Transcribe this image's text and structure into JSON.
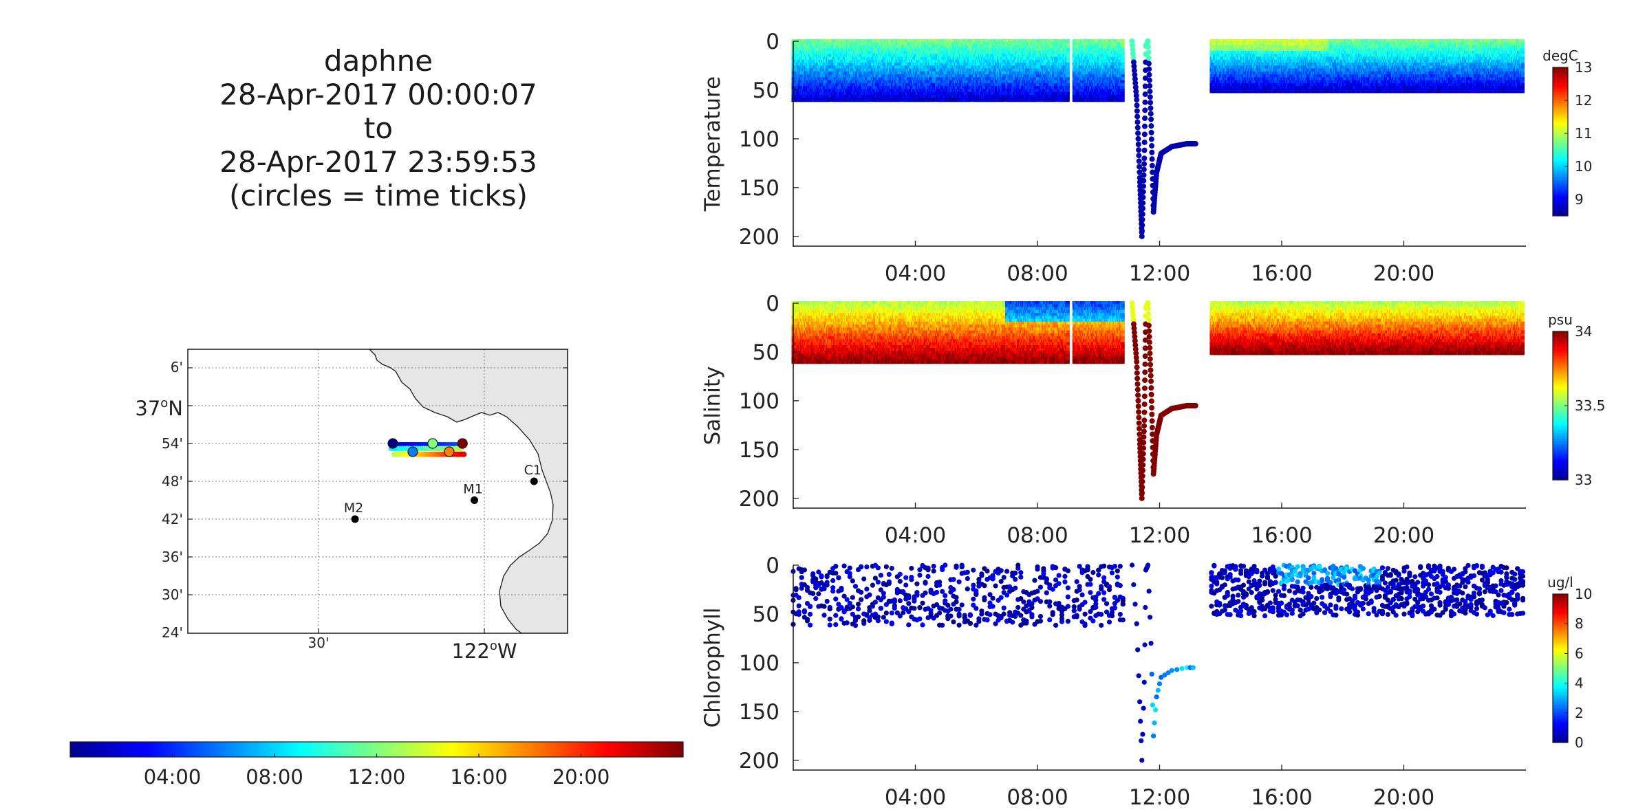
{
  "header": {
    "line1": "daphne",
    "line2": "28-Apr-2017 00:00:07",
    "line3": "to",
    "line4": "28-Apr-2017 23:59:53",
    "line5": "(circles = time ticks)"
  },
  "map": {
    "lat_ticks": [
      "6'",
      "37°N",
      "54'",
      "48'",
      "42'",
      "36'",
      "30'",
      "24'"
    ],
    "lon_ticks": [
      "30'",
      "122°W"
    ],
    "stations": [
      {
        "name": "M2",
        "lon": -122.39,
        "lat": 36.7
      },
      {
        "name": "M1",
        "lon": -122.03,
        "lat": 36.75
      },
      {
        "name": "C1",
        "lon": -121.85,
        "lat": 36.8
      }
    ],
    "track": {
      "lon_start": -122.28,
      "lon_end": -122.07,
      "lat_top": 36.9,
      "lat_bottom": 36.875
    },
    "land_color": "#e6e6e6"
  },
  "time_colorbar": {
    "tick_labels": [
      "04:00",
      "08:00",
      "12:00",
      "16:00",
      "20:00"
    ],
    "range_hours": [
      0,
      24
    ]
  },
  "chart_data": [
    {
      "type": "scatter",
      "ylabel": "Temperature",
      "units": "degC",
      "x_ticks": [
        "04:00",
        "08:00",
        "12:00",
        "16:00",
        "20:00"
      ],
      "y_ticks": [
        "0",
        "50",
        "100",
        "150",
        "200"
      ],
      "ylim": [
        0,
        210
      ],
      "y_reversed": true,
      "xlim_hours": [
        0,
        24
      ],
      "colorbar": {
        "min": 8.5,
        "max": 13,
        "ticks": [
          "13",
          "12",
          "11",
          "10",
          "9"
        ],
        "tick_values": [
          13,
          12,
          11,
          10,
          9
        ]
      },
      "surface_value": 10.6,
      "deep_value": 9.1,
      "dive_value": 8.8
    },
    {
      "type": "scatter",
      "ylabel": "Salinity",
      "units": "psu",
      "x_ticks": [
        "04:00",
        "08:00",
        "12:00",
        "16:00",
        "20:00"
      ],
      "y_ticks": [
        "0",
        "50",
        "100",
        "150",
        "200"
      ],
      "ylim": [
        0,
        210
      ],
      "y_reversed": true,
      "xlim_hours": [
        0,
        24
      ],
      "colorbar": {
        "min": 33,
        "max": 34,
        "ticks": [
          "34",
          "33.5",
          "33"
        ],
        "tick_values": [
          34,
          33.5,
          33
        ]
      },
      "surface_value": 33.72,
      "deep_value": 33.95,
      "dive_value": 34.0
    },
    {
      "type": "scatter",
      "ylabel": "Chlorophyll",
      "units": "ug/l",
      "x_ticks": [
        "04:00",
        "08:00",
        "12:00",
        "16:00",
        "20:00"
      ],
      "y_ticks": [
        "0",
        "50",
        "100",
        "150",
        "200"
      ],
      "ylim": [
        0,
        210
      ],
      "y_reversed": true,
      "xlim_hours": [
        0,
        24
      ],
      "colorbar": {
        "min": 0,
        "max": 10,
        "ticks": [
          "10",
          "8",
          "6",
          "4",
          "2",
          "0"
        ],
        "tick_values": [
          10,
          8,
          6,
          4,
          2,
          0
        ]
      },
      "surface_value": 0.8,
      "deep_value": 0.5,
      "dive_value": 1.0
    }
  ],
  "profile_segments_hours": [
    [
      0.0,
      1.2
    ],
    [
      1.3,
      2.5
    ],
    [
      2.6,
      3.5
    ],
    [
      3.6,
      4.6
    ],
    [
      4.7,
      5.8
    ],
    [
      5.9,
      6.9
    ],
    [
      7.0,
      8.0
    ],
    [
      8.1,
      8.6
    ],
    [
      8.7,
      9.0
    ],
    [
      9.2,
      10.8
    ]
  ],
  "profile_segments_after_hours": [
    [
      13.7,
      15.8
    ],
    [
      15.9,
      17.5
    ],
    [
      17.6,
      19.2
    ],
    [
      19.3,
      20.9
    ],
    [
      21.0,
      22.2
    ],
    [
      22.3,
      23.9
    ]
  ],
  "dive_track": [
    [
      11.1,
      0
    ],
    [
      11.25,
      60
    ],
    [
      11.35,
      140
    ],
    [
      11.42,
      200
    ],
    [
      11.5,
      120
    ],
    [
      11.55,
      5
    ],
    [
      11.62,
      0
    ],
    [
      11.72,
      80
    ],
    [
      11.8,
      175
    ],
    [
      11.9,
      135
    ],
    [
      12.05,
      115
    ],
    [
      12.4,
      108
    ],
    [
      12.9,
      105
    ],
    [
      13.2,
      105
    ]
  ]
}
